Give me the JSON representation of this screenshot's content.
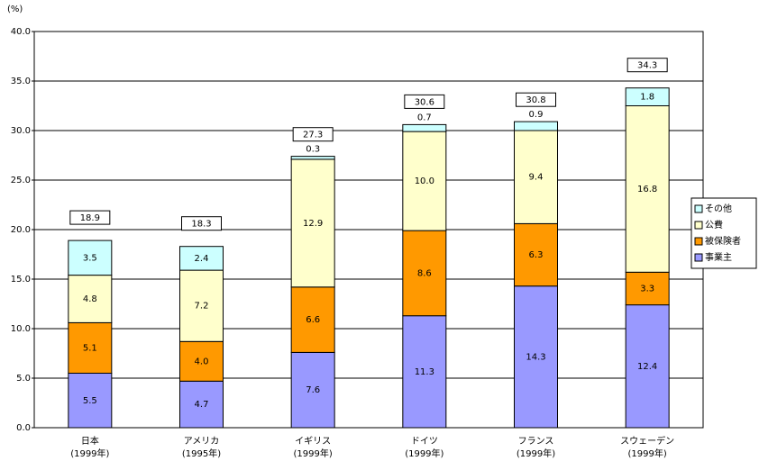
{
  "chart_data": {
    "type": "stacked_bar",
    "y_unit_label": "(%)",
    "categories": [
      "日本",
      "アメリカ",
      "イギリス",
      "ドイツ",
      "フランス",
      "スウェーデン"
    ],
    "category_years": [
      "(1999年)",
      "(1995年)",
      "(1999年)",
      "(1999年)",
      "(1999年)",
      "(1999年)"
    ],
    "totals": [
      18.9,
      18.3,
      27.3,
      30.6,
      30.8,
      34.3
    ],
    "series": [
      {
        "name": "事業主",
        "color": "#9999ff",
        "values": [
          5.5,
          4.7,
          7.6,
          11.3,
          14.3,
          12.4
        ],
        "value_labels": [
          "5.5",
          "4.7",
          "7.6",
          "11.3",
          "14.3",
          "12.4"
        ]
      },
      {
        "name": "被保険者",
        "color": "#ff9900",
        "values": [
          5.1,
          4.0,
          6.6,
          8.6,
          6.3,
          3.3
        ],
        "value_labels": [
          "5.1",
          "4.0",
          "6.6",
          "8.6",
          "6.3",
          "3.3"
        ]
      },
      {
        "name": "公費",
        "color": "#ffffcc",
        "values": [
          4.8,
          7.2,
          12.9,
          10.0,
          9.4,
          16.8
        ],
        "value_labels": [
          "4.8",
          "7.2",
          "12.9",
          "10.0",
          "9.4",
          "16.8"
        ]
      },
      {
        "name": "その他",
        "color": "#ccffff",
        "values": [
          3.5,
          2.4,
          0.3,
          0.7,
          0.9,
          1.8
        ],
        "value_labels": [
          "3.5",
          "2.4",
          "0.3",
          "0.7",
          "0.9",
          "1.8"
        ]
      }
    ],
    "ylim": [
      0,
      40
    ],
    "yticks": [
      {
        "value": 0,
        "label": "0.0"
      },
      {
        "value": 5,
        "label": "5.0"
      },
      {
        "value": 10,
        "label": "10.0"
      },
      {
        "value": 15,
        "label": "15.0"
      },
      {
        "value": 20,
        "label": "20.0"
      },
      {
        "value": 25,
        "label": "25.0"
      },
      {
        "value": 30,
        "label": "30.0"
      },
      {
        "value": 35,
        "label": "35.0"
      },
      {
        "value": 40,
        "label": "40.0"
      }
    ],
    "grid": true
  }
}
